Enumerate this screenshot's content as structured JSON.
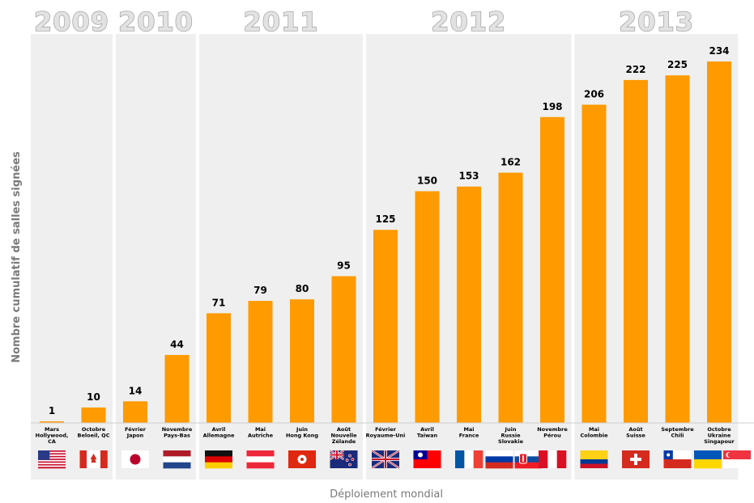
{
  "chart_data": {
    "type": "bar",
    "xlabel": "Déploiement mondial",
    "ylabel": "Nombre cumulatif de salles signées",
    "ylim": [
      0,
      250
    ],
    "grid": false,
    "colors": {
      "bar": "#ff9a00",
      "panel": "#efefef"
    },
    "year_groups": [
      {
        "year": "2009",
        "start": 0,
        "end": 1
      },
      {
        "year": "2010",
        "start": 2,
        "end": 3
      },
      {
        "year": "2011",
        "start": 4,
        "end": 7
      },
      {
        "year": "2012",
        "start": 8,
        "end": 12
      },
      {
        "year": "2013",
        "start": 13,
        "end": 16
      }
    ],
    "categories": [
      {
        "lines": [
          "Mars",
          "Hollywood,",
          "CA"
        ],
        "flags": [
          "us"
        ]
      },
      {
        "lines": [
          "Octobre",
          "Beloeil, QC"
        ],
        "flags": [
          "ca"
        ]
      },
      {
        "lines": [
          "Février",
          "Japon"
        ],
        "flags": [
          "jp"
        ]
      },
      {
        "lines": [
          "Novembre",
          "Pays-Bas"
        ],
        "flags": [
          "nl"
        ]
      },
      {
        "lines": [
          "Avril",
          "Allemagne"
        ],
        "flags": [
          "de"
        ]
      },
      {
        "lines": [
          "Mai",
          "Autriche"
        ],
        "flags": [
          "at"
        ]
      },
      {
        "lines": [
          "Juin",
          "Hong Kong"
        ],
        "flags": [
          "hk"
        ]
      },
      {
        "lines": [
          "Août",
          "Nouvelle",
          "Zélande"
        ],
        "flags": [
          "nz"
        ]
      },
      {
        "lines": [
          "Février",
          "Royaume-Uni"
        ],
        "flags": [
          "gb"
        ]
      },
      {
        "lines": [
          "Avril",
          "Taiwan"
        ],
        "flags": [
          "tw"
        ]
      },
      {
        "lines": [
          "Mai",
          "France"
        ],
        "flags": [
          "fr"
        ]
      },
      {
        "lines": [
          "Juin",
          "Russie",
          "Slovakie"
        ],
        "flags": [
          "ru",
          "sk"
        ]
      },
      {
        "lines": [
          "Novembre",
          "Pérou"
        ],
        "flags": [
          "pe"
        ]
      },
      {
        "lines": [
          "Mai",
          "Colombie"
        ],
        "flags": [
          "co"
        ]
      },
      {
        "lines": [
          "Août",
          "Suisse"
        ],
        "flags": [
          "ch"
        ]
      },
      {
        "lines": [
          "Septembre",
          "Chili"
        ],
        "flags": [
          "cl"
        ]
      },
      {
        "lines": [
          "Octobre",
          "Ukraine",
          "Singapour"
        ],
        "flags": [
          "ua",
          "sg"
        ]
      }
    ],
    "values": [
      1,
      10,
      14,
      44,
      71,
      79,
      80,
      95,
      125,
      150,
      153,
      162,
      198,
      206,
      222,
      225,
      234
    ]
  }
}
